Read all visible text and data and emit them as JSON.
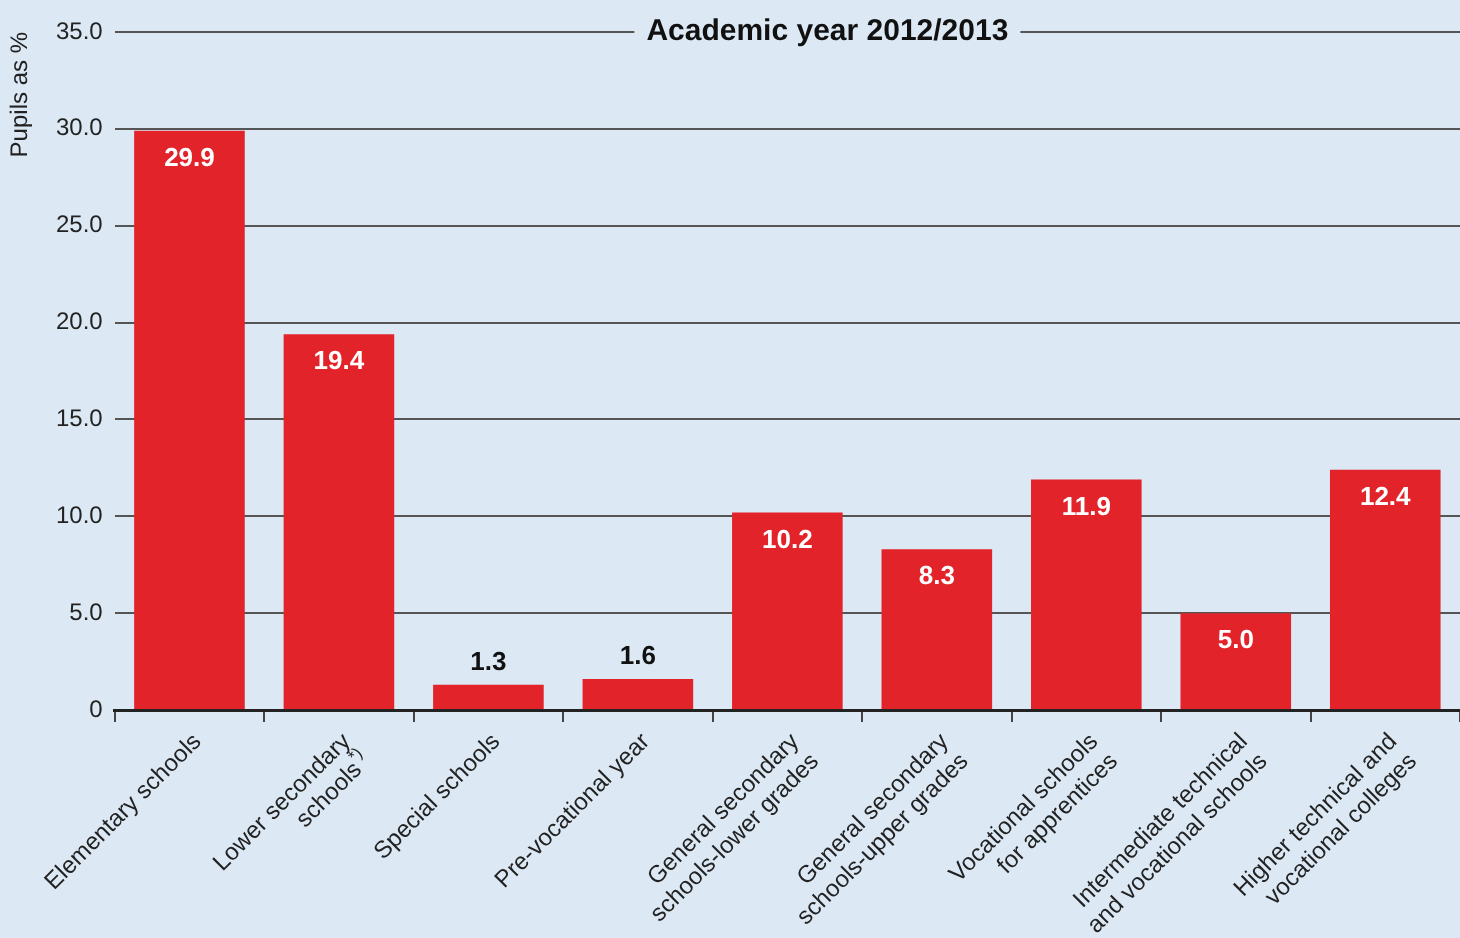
{
  "chart_data": {
    "type": "bar",
    "title": "Academic year 2012/2013",
    "ylabel": "Pupils as %",
    "categories": [
      "Elementary schools",
      "Lower secondary\nschools$^{*)}$",
      "Special schools",
      "Pre-vocational year",
      "General secondary\nschools-lower grades",
      "General secondary\nschools-upper grades",
      "Vocational schools\nfor apprentices",
      "Intermediate technical\nand vocational schools",
      "Higher technical and\nvocational colleges"
    ],
    "values": [
      29.9,
      19.4,
      1.3,
      1.6,
      10.2,
      8.3,
      11.9,
      5.0,
      12.4
    ],
    "value_labels": [
      "29.9",
      "19.4",
      "1.3",
      "1.6",
      "10.2",
      "8.3",
      "11.9",
      "5.0",
      "12.4"
    ],
    "color": "#e3232a",
    "ylim": [
      0,
      35
    ],
    "yticks": [
      0,
      {
        "value": 5,
        "label": "5.0"
      },
      {
        "value": 10,
        "label": "10.0"
      },
      {
        "value": 15,
        "label": "15.0"
      },
      {
        "value": 20,
        "label": "20.0"
      },
      {
        "value": 25,
        "label": "25.0"
      },
      {
        "value": 30,
        "label": "30.0"
      },
      {
        "value": 35,
        "label": "35.0"
      }
    ],
    "grid": "y",
    "legend": false
  }
}
